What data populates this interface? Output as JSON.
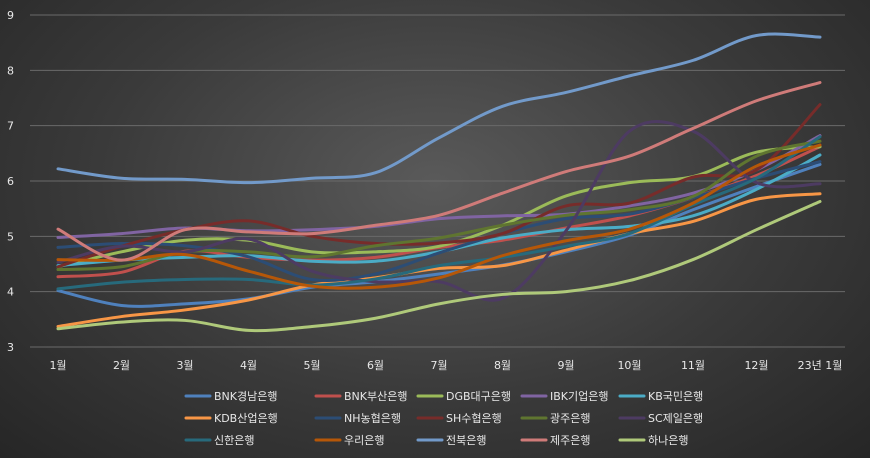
{
  "chart_data": {
    "type": "line",
    "title": "",
    "xlabel": "",
    "ylabel": "",
    "categories": [
      "1월",
      "2월",
      "3월",
      "4월",
      "5월",
      "6월",
      "7월",
      "8월",
      "9월",
      "10월",
      "11월",
      "12월",
      "23년 1월"
    ],
    "ylim": [
      3,
      9
    ],
    "yticks": [
      3,
      4,
      5,
      6,
      7,
      8,
      9
    ],
    "grid": true,
    "legend_position": "bottom",
    "series": [
      {
        "name": "BNK경남은행",
        "color": "#4f81bd",
        "values": [
          4.02,
          3.75,
          3.78,
          3.87,
          4.08,
          4.18,
          4.32,
          4.48,
          4.72,
          5.02,
          5.48,
          5.9,
          6.3
        ]
      },
      {
        "name": "BNK부산은행",
        "color": "#c0504d",
        "values": [
          4.27,
          4.35,
          4.73,
          4.62,
          4.57,
          4.62,
          4.8,
          4.93,
          5.15,
          5.37,
          5.7,
          6.1,
          6.62
        ]
      },
      {
        "name": "DGB대구은행",
        "color": "#9bbb59",
        "values": [
          4.45,
          4.72,
          4.93,
          4.93,
          4.72,
          4.72,
          4.82,
          5.2,
          5.73,
          5.97,
          6.08,
          6.52,
          6.62
        ]
      },
      {
        "name": "IBK기업은행",
        "color": "#8064a2",
        "values": [
          4.98,
          5.05,
          5.15,
          5.1,
          5.12,
          5.18,
          5.32,
          5.37,
          5.4,
          5.55,
          5.78,
          6.2,
          6.82
        ]
      },
      {
        "name": "KB국민은행",
        "color": "#4bacc6",
        "values": [
          4.47,
          4.57,
          4.62,
          4.65,
          4.55,
          4.55,
          4.72,
          4.97,
          5.12,
          5.18,
          5.37,
          5.85,
          6.47
        ]
      },
      {
        "name": "KDB산업은행",
        "color": "#f79646",
        "values": [
          3.37,
          3.55,
          3.67,
          3.85,
          4.12,
          4.25,
          4.42,
          4.47,
          4.75,
          5.05,
          5.27,
          5.67,
          5.77
        ]
      },
      {
        "name": "NH농협은행",
        "color": "#2c4d75",
        "values": [
          4.8,
          4.87,
          4.83,
          4.63,
          4.22,
          4.32,
          4.7,
          5.05,
          5.32,
          5.4,
          5.7,
          6.05,
          6.35
        ]
      },
      {
        "name": "SH수협은행",
        "color": "#772c2a",
        "values": [
          4.45,
          4.82,
          5.12,
          5.28,
          5.0,
          4.87,
          4.88,
          5.05,
          5.55,
          5.6,
          6.07,
          6.2,
          7.38
        ]
      },
      {
        "name": "광주은행",
        "color": "#5f7530",
        "values": [
          4.4,
          4.45,
          4.72,
          4.72,
          4.63,
          4.83,
          4.97,
          5.2,
          5.38,
          5.48,
          5.72,
          6.45,
          6.72
        ]
      },
      {
        "name": "SC제일은행",
        "color": "#4d3b62",
        "values": [
          4.53,
          4.82,
          4.72,
          4.95,
          4.37,
          4.18,
          4.18,
          3.88,
          5.1,
          6.9,
          6.9,
          5.97,
          5.95
        ]
      },
      {
        "name": "신한은행",
        "color": "#276a7c",
        "values": [
          4.05,
          4.17,
          4.22,
          4.22,
          4.12,
          4.23,
          4.47,
          4.62,
          4.82,
          5.05,
          5.57,
          6.05,
          6.8
        ]
      },
      {
        "name": "우리은행",
        "color": "#b65708",
        "values": [
          4.58,
          4.57,
          4.67,
          4.37,
          4.1,
          4.08,
          4.25,
          4.65,
          4.92,
          5.13,
          5.6,
          6.27,
          6.65
        ]
      },
      {
        "name": "전북은행",
        "color": "#729aca",
        "values": [
          6.22,
          6.05,
          6.03,
          5.97,
          6.05,
          6.15,
          6.78,
          7.35,
          7.6,
          7.9,
          8.18,
          8.63,
          8.6
        ]
      },
      {
        "name": "제주은행",
        "color": "#cf7b79",
        "values": [
          5.13,
          4.57,
          5.12,
          5.08,
          5.05,
          5.2,
          5.38,
          5.78,
          6.17,
          6.45,
          6.95,
          7.45,
          7.78
        ]
      },
      {
        "name": "하나은행",
        "color": "#afc97a",
        "values": [
          3.33,
          3.45,
          3.48,
          3.3,
          3.37,
          3.52,
          3.78,
          3.95,
          4.0,
          4.2,
          4.58,
          5.12,
          5.63
        ]
      }
    ]
  }
}
